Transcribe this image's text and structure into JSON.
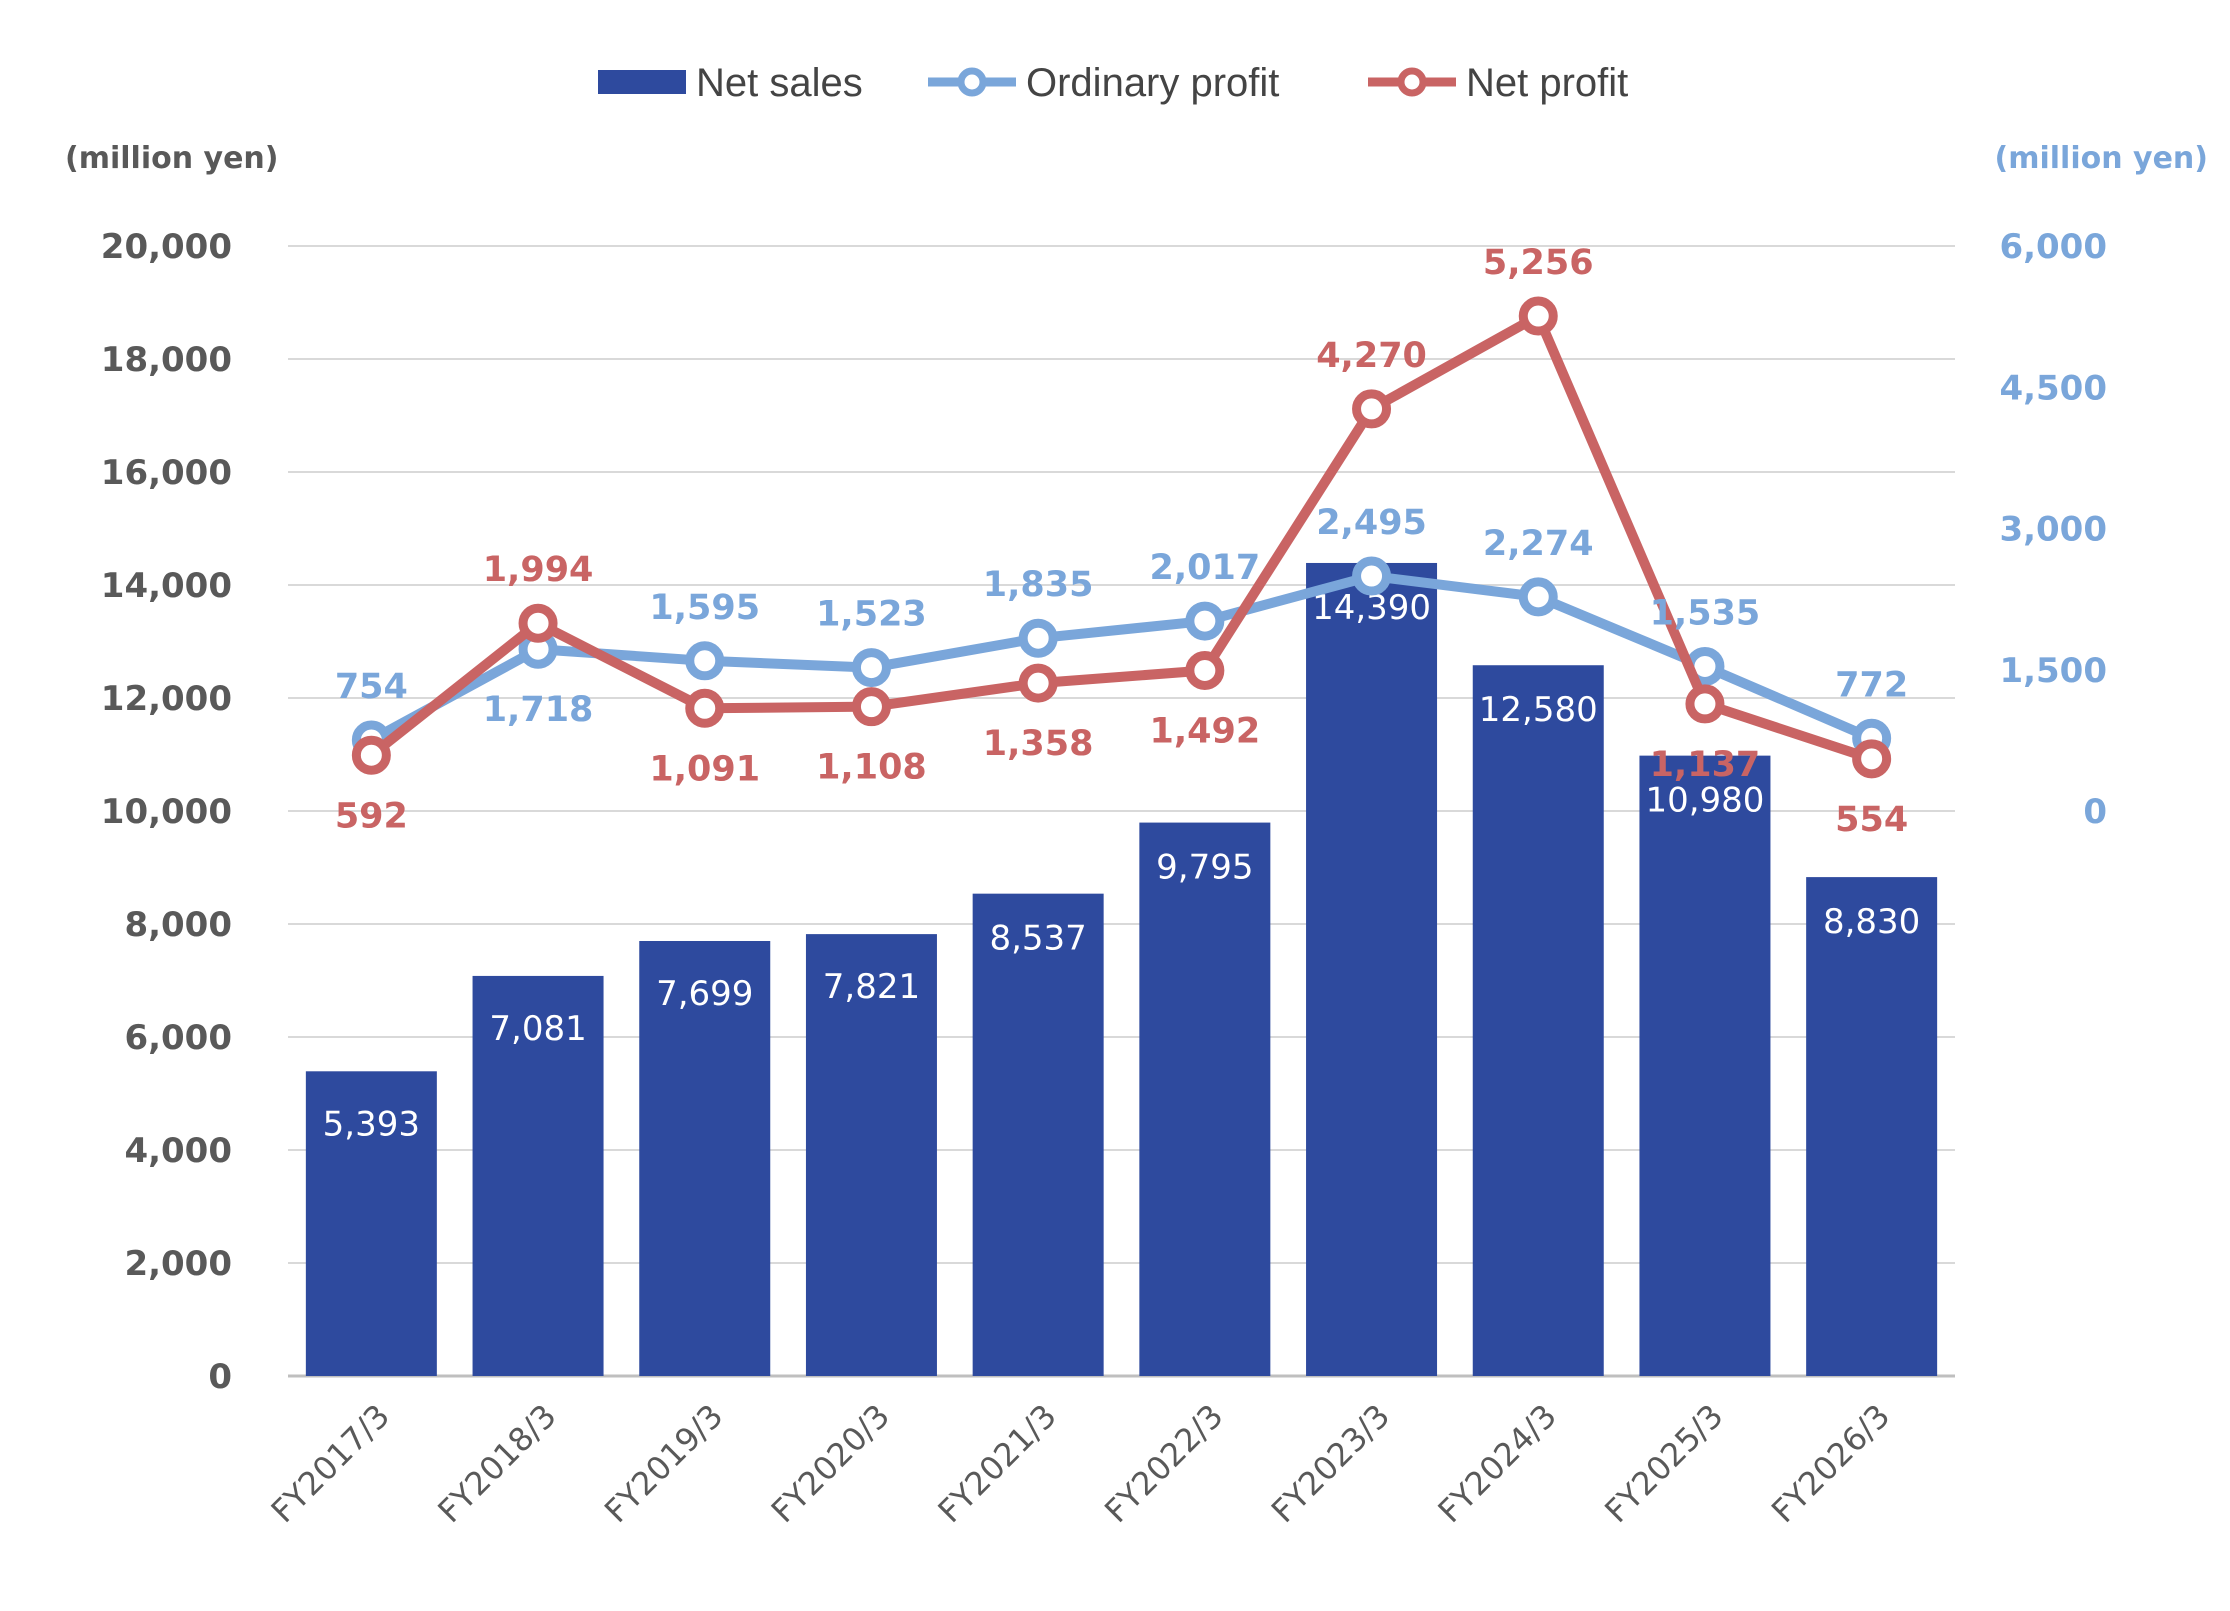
{
  "legend": [
    {
      "name": "Net sales",
      "symbol": "bar",
      "color": "#2e4a9e"
    },
    {
      "name": "Ordinary profit",
      "symbol": "line-marker",
      "color": "#7aa6da"
    },
    {
      "name": "Net profit",
      "symbol": "line-marker",
      "color": "#c96464"
    }
  ],
  "left_axis_unit": "(million yen)",
  "right_axis_unit": "(million yen)",
  "chart_data": {
    "type": "bar",
    "title": "",
    "categories": [
      "FY2017/3",
      "FY2018/3",
      "FY2019/3",
      "FY2020/3",
      "FY2021/3",
      "FY2022/3",
      "FY2023/3",
      "FY2024/3",
      "FY2025/3",
      "FY2026/3"
    ],
    "series": [
      {
        "name": "Net sales",
        "type": "bar",
        "axis": "left",
        "color": "#2e4a9e",
        "values": [
          5393,
          7081,
          7699,
          7821,
          8537,
          9795,
          14390,
          12580,
          10980,
          8830
        ],
        "labels": [
          "5,393",
          "7,081",
          "7,699",
          "7,821",
          "8,537",
          "9,795",
          "14,390",
          "12,580",
          "10,980",
          "8,830"
        ]
      },
      {
        "name": "Ordinary profit",
        "type": "line",
        "axis": "right",
        "color": "#7aa6da",
        "values": [
          754,
          1718,
          1595,
          1523,
          1835,
          2017,
          2495,
          2274,
          1535,
          772
        ],
        "labels": [
          "754",
          "1,718",
          "1,595",
          "1,523",
          "1,835",
          "2,017",
          "2,495",
          "2,274",
          "1,535",
          "772"
        ]
      },
      {
        "name": "Net profit",
        "type": "line",
        "axis": "right",
        "color": "#c96464",
        "values": [
          592,
          1994,
          1091,
          1108,
          1358,
          1492,
          4270,
          5256,
          1137,
          554
        ],
        "labels": [
          "592",
          "1,994",
          "1,091",
          "1,108",
          "1,358",
          "1,492",
          "4,270",
          "5,256",
          "1,137",
          "554"
        ]
      }
    ],
    "left_axis": {
      "label": "(million yen)",
      "ylim": [
        0,
        20000
      ],
      "ticks": [
        0,
        2000,
        4000,
        6000,
        8000,
        10000,
        12000,
        14000,
        16000,
        18000,
        20000
      ],
      "tick_labels": [
        "0",
        "2,000",
        "4,000",
        "6,000",
        "8,000",
        "10,000",
        "12,000",
        "14,000",
        "16,000",
        "18,000",
        "20,000"
      ]
    },
    "right_axis": {
      "label": "(million yen)",
      "ylim": [
        -6000,
        6000
      ],
      "ticks": [
        0,
        1500,
        3000,
        4500,
        6000
      ],
      "tick_labels": [
        "0",
        "1,500",
        "3,000",
        "4,500",
        "6,000"
      ]
    },
    "grid": true,
    "legend_position": "top"
  }
}
